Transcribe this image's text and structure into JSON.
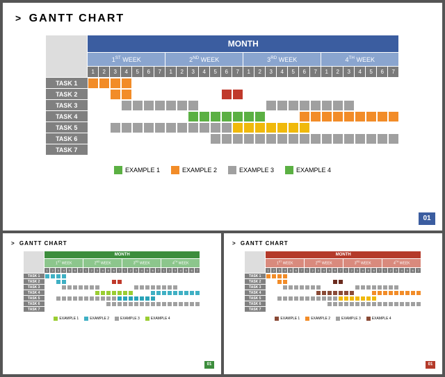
{
  "global": {
    "title_prefix": ">",
    "title_text": "GANTT CHART",
    "month_label": "MONTH",
    "week_labels": [
      {
        "ord": "1",
        "suffix": "ST",
        "word": "WEEK"
      },
      {
        "ord": "2",
        "suffix": "ND",
        "word": "WEEK"
      },
      {
        "ord": "3",
        "suffix": "RD",
        "word": "WEEK"
      },
      {
        "ord": "4",
        "suffix": "TH",
        "word": "WEEK"
      }
    ],
    "days_per_week": 7,
    "tasks": [
      "TASK 1",
      "TASK 2",
      "TASK 3",
      "TASK 4",
      "TASK 5",
      "TASK 6",
      "TASK 7"
    ],
    "task_label_bg": "#808080",
    "corner_bg": "#dddddd",
    "cell_bg": "#ffffff",
    "page_bg": "#555555",
    "panel_bg": "#ffffff",
    "badge_text": "01"
  },
  "panels": [
    {
      "id": "main",
      "small": false,
      "header_colors": {
        "month": "#3b5da0",
        "week": "#8aa5cf",
        "day": "#7a7a7a"
      },
      "legend": [
        {
          "label": "EXAMPLE 1",
          "color": "#5bb043"
        },
        {
          "label": "EXAMPLE 2",
          "color": "#f28c28"
        },
        {
          "label": "EXAMPLE 3",
          "color": "#a0a0a0"
        },
        {
          "label": "EXAMPLE 4",
          "color": "#5bb043"
        }
      ],
      "badge_bg": "#3b5da0",
      "bars": [
        {
          "row": 0,
          "start": 1,
          "end": 4,
          "color": "#f28c28"
        },
        {
          "row": 1,
          "start": 3,
          "end": 4,
          "color": "#f28c28"
        },
        {
          "row": 1,
          "start": 13,
          "end": 14,
          "color": "#c0392b"
        },
        {
          "row": 2,
          "start": 4,
          "end": 10,
          "color": "#a0a0a0"
        },
        {
          "row": 2,
          "start": 17,
          "end": 24,
          "color": "#a0a0a0"
        },
        {
          "row": 3,
          "start": 10,
          "end": 16,
          "color": "#5bb043"
        },
        {
          "row": 3,
          "start": 20,
          "end": 28,
          "color": "#f28c28"
        },
        {
          "row": 4,
          "start": 3,
          "end": 13,
          "color": "#a0a0a0"
        },
        {
          "row": 4,
          "start": 14,
          "end": 20,
          "color": "#f0b90b"
        },
        {
          "row": 5,
          "start": 12,
          "end": 28,
          "color": "#a0a0a0"
        }
      ]
    },
    {
      "id": "green",
      "small": true,
      "header_colors": {
        "month": "#3c8d3c",
        "week": "#8cc68c",
        "day": "#7a7a7a"
      },
      "legend": [
        {
          "label": "EXAMPLE 1",
          "color": "#9acd32"
        },
        {
          "label": "EXAMPLE 2",
          "color": "#3fb0c4"
        },
        {
          "label": "EXAMPLE 3",
          "color": "#a0a0a0"
        },
        {
          "label": "EXAMPLE 4",
          "color": "#9acd32"
        }
      ],
      "badge_bg": "#3c8d3c",
      "bars": [
        {
          "row": 0,
          "start": 1,
          "end": 4,
          "color": "#3fb0c4"
        },
        {
          "row": 1,
          "start": 3,
          "end": 4,
          "color": "#3fb0c4"
        },
        {
          "row": 1,
          "start": 13,
          "end": 14,
          "color": "#c0392b"
        },
        {
          "row": 2,
          "start": 4,
          "end": 10,
          "color": "#a0a0a0"
        },
        {
          "row": 2,
          "start": 17,
          "end": 24,
          "color": "#a0a0a0"
        },
        {
          "row": 3,
          "start": 10,
          "end": 16,
          "color": "#9acd32"
        },
        {
          "row": 3,
          "start": 20,
          "end": 28,
          "color": "#3fb0c4"
        },
        {
          "row": 4,
          "start": 3,
          "end": 13,
          "color": "#a0a0a0"
        },
        {
          "row": 4,
          "start": 14,
          "end": 20,
          "color": "#2aa3b8"
        },
        {
          "row": 5,
          "start": 12,
          "end": 28,
          "color": "#a0a0a0"
        }
      ]
    },
    {
      "id": "red",
      "small": true,
      "header_colors": {
        "month": "#b43a2a",
        "week": "#d98a7d",
        "day": "#7a7a7a"
      },
      "legend": [
        {
          "label": "EXAMPLE 1",
          "color": "#8a4a36"
        },
        {
          "label": "EXAMPLE 2",
          "color": "#f28c28"
        },
        {
          "label": "EXAMPLE 3",
          "color": "#a0a0a0"
        },
        {
          "label": "EXAMPLE 4",
          "color": "#8a4a36"
        }
      ],
      "badge_bg": "#b43a2a",
      "bars": [
        {
          "row": 0,
          "start": 1,
          "end": 4,
          "color": "#f28c28"
        },
        {
          "row": 1,
          "start": 3,
          "end": 4,
          "color": "#f28c28"
        },
        {
          "row": 1,
          "start": 13,
          "end": 14,
          "color": "#6a2b1e"
        },
        {
          "row": 2,
          "start": 4,
          "end": 10,
          "color": "#a0a0a0"
        },
        {
          "row": 2,
          "start": 17,
          "end": 24,
          "color": "#a0a0a0"
        },
        {
          "row": 3,
          "start": 10,
          "end": 16,
          "color": "#8a4a36"
        },
        {
          "row": 3,
          "start": 20,
          "end": 28,
          "color": "#f28c28"
        },
        {
          "row": 4,
          "start": 3,
          "end": 13,
          "color": "#a0a0a0"
        },
        {
          "row": 4,
          "start": 14,
          "end": 20,
          "color": "#f0b90b"
        },
        {
          "row": 5,
          "start": 12,
          "end": 28,
          "color": "#a0a0a0"
        }
      ]
    }
  ]
}
